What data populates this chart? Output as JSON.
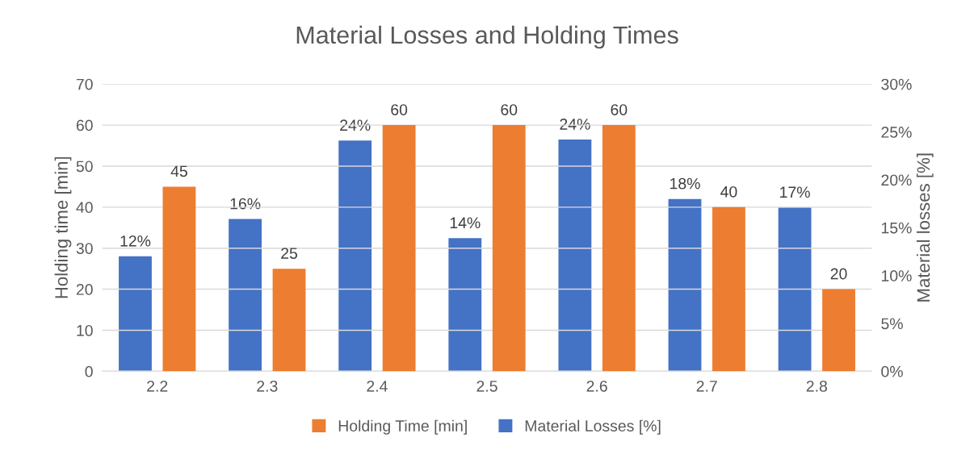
{
  "chart_data": {
    "type": "bar",
    "title": "Material Losses and Holding Times",
    "categories": [
      "2.2",
      "2.3",
      "2.4",
      "2.5",
      "2.6",
      "2.7",
      "2.8"
    ],
    "series": [
      {
        "name": "Material Losses [%]",
        "color": "#4472c4",
        "axis": "y2",
        "values": [
          12.0,
          15.9,
          24.1,
          13.9,
          24.2,
          18.0,
          17.1
        ],
        "value_labels": [
          "12%",
          "16%",
          "24%",
          "14%",
          "24%",
          "18%",
          "17%"
        ]
      },
      {
        "name": "Holding Time [min]",
        "color": "#ed7d31",
        "axis": "y",
        "values": [
          45,
          25,
          60,
          60,
          60,
          40,
          20
        ],
        "value_labels": [
          "45",
          "25",
          "60",
          "60",
          "60",
          "40",
          "20"
        ]
      }
    ],
    "ylabel": "Holding time [min]",
    "y2label": "Material losses [%]",
    "ylim": [
      0,
      70
    ],
    "yticks": [
      0,
      10,
      20,
      30,
      40,
      50,
      60,
      70
    ],
    "y2lim": [
      0,
      30
    ],
    "y2ticks": [
      {
        "value": 0,
        "label": "0%"
      },
      {
        "value": 5,
        "label": "5%"
      },
      {
        "value": 10,
        "label": "10%"
      },
      {
        "value": 15,
        "label": "15%"
      },
      {
        "value": 20,
        "label": "20%"
      },
      {
        "value": 25,
        "label": "25%"
      },
      {
        "value": 30,
        "label": "30%"
      }
    ],
    "grid": "y",
    "legend": "bottom"
  }
}
